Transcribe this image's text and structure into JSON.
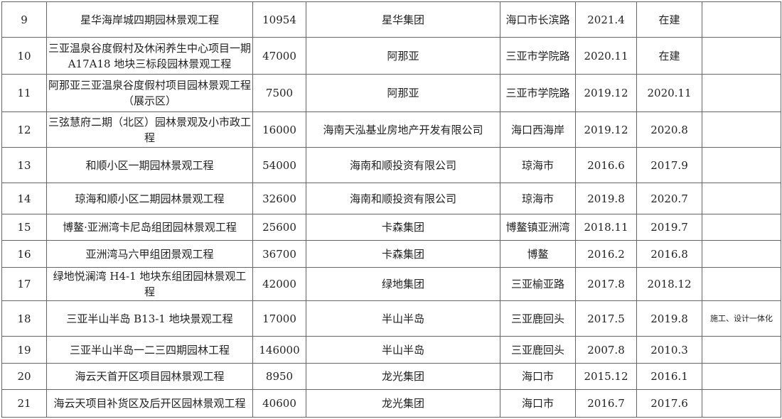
{
  "rows": [
    {
      "no": "9",
      "name": "星华海岸城四期园林景观工程",
      "area": "10954",
      "client": "星华集团",
      "location": "海口市长滨路",
      "start": "2021.4",
      "end": "在建",
      "note": ""
    },
    {
      "no": "10",
      "name": "三亚温泉谷度假村及休闲养生中心项目一期 A17A18 地块三标段园林景观工程",
      "area": "47000",
      "client": "阿那亚",
      "location": "三亚市学院路",
      "start": "2020.11",
      "end": "在建",
      "note": ""
    },
    {
      "no": "11",
      "name": "阿那亚三亚温泉谷度假村项目园林景观工程（展示区）",
      "area": "7500",
      "client": "阿那亚",
      "location": "三亚市学院路",
      "start": "2019.12",
      "end": "2020.11",
      "note": ""
    },
    {
      "no": "12",
      "name": "三弦慧府二期（北区）园林景观及小市政工程",
      "area": "16000",
      "client": "海南天泓基业房地产开发有限公司",
      "location": "海口西海岸",
      "start": "2019.12",
      "end": "2020.8",
      "note": ""
    },
    {
      "no": "13",
      "name": "和顺小区一期园林景观工程",
      "area": "54000",
      "client": "海南和顺投资有限公司",
      "location": "琼海市",
      "start": "2016.6",
      "end": "2017.9",
      "note": ""
    },
    {
      "no": "14",
      "name": "琼海和顺小区二期园林景观工程",
      "area": "32600",
      "client": "海南和顺投资有限公司",
      "location": "琼海市",
      "start": "2019.8",
      "end": "2020.7",
      "note": ""
    },
    {
      "no": "15",
      "name": "博鳌·亚洲湾卡尼岛组团园林景观工程",
      "area": "25600",
      "client": "卡森集团",
      "location": "博鳌镇亚洲湾",
      "start": "2018.11",
      "end": "2019.7",
      "note": ""
    },
    {
      "no": "16",
      "name": "亚洲湾马六甲组团景观工程",
      "area": "36700",
      "client": "卡森集团",
      "location": "博鳌",
      "start": "2016.2",
      "end": "2016.8",
      "note": ""
    },
    {
      "no": "17",
      "name": "绿地悦澜湾 H4-1 地块东组团园林景观工程",
      "area": "42000",
      "client": "绿地集团",
      "location": "三亚榆亚路",
      "start": "2017.8",
      "end": "2018.12",
      "note": ""
    },
    {
      "no": "18",
      "name": "三亚半山半岛 B13-1 地块景观工程",
      "area": "17000",
      "client": "半山半岛",
      "location": "三亚鹿回头",
      "start": "2017.5",
      "end": "2019.8",
      "note": "施工、设计一体化"
    },
    {
      "no": "19",
      "name": "三亚半山半岛一二三四期园林工程",
      "area": "146000",
      "client": "半山半岛",
      "location": "三亚鹿回头",
      "start": "2007.8",
      "end": "2010.3",
      "note": ""
    },
    {
      "no": "20",
      "name": "海云天首开区项目园林景观工程",
      "area": "8950",
      "client": "龙光集团",
      "location": "海口市",
      "start": "2015.12",
      "end": "2016.1",
      "note": ""
    },
    {
      "no": "21",
      "name": "海云天项目补货区及后开区园林景观工程",
      "area": "40600",
      "client": "龙光集团",
      "location": "海口市",
      "start": "2016.7",
      "end": "2017.6",
      "note": ""
    }
  ]
}
